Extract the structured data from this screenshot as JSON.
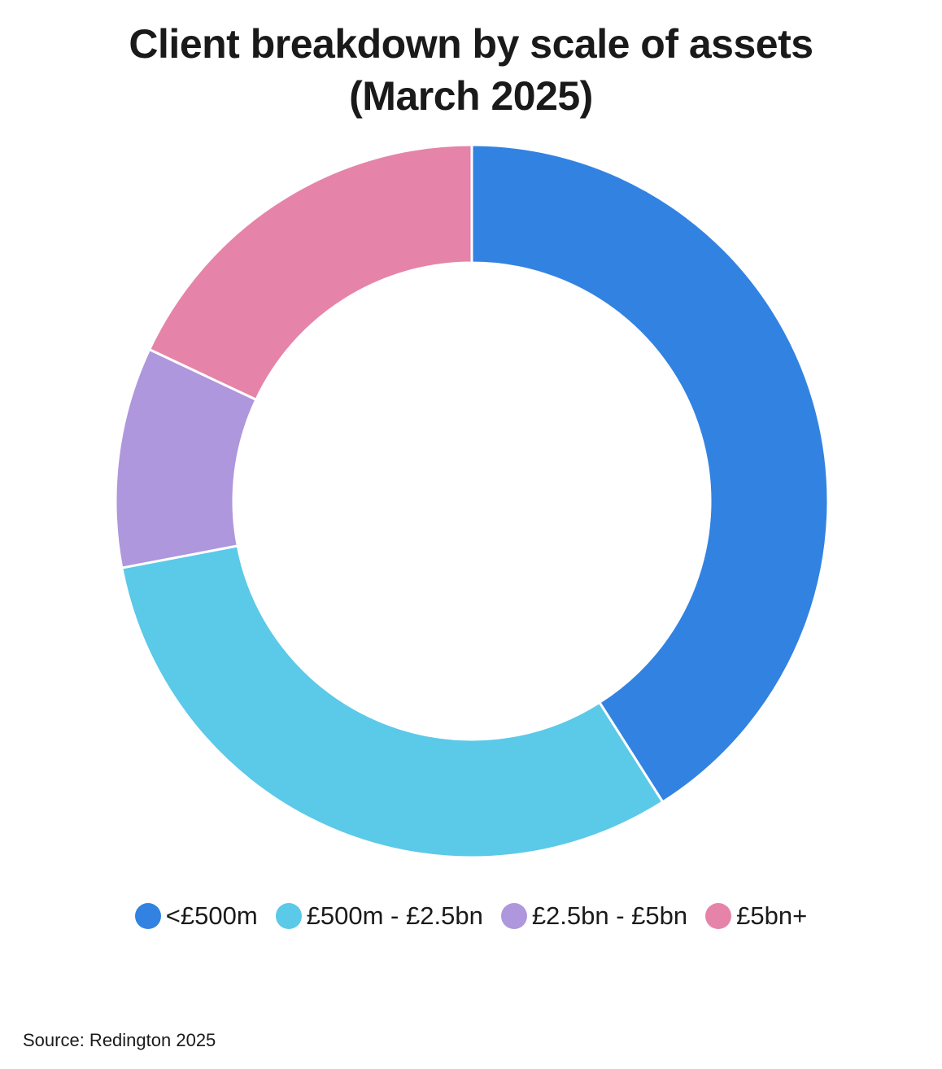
{
  "chart_data": {
    "type": "pie",
    "variant": "donut",
    "title_lines": [
      "Client breakdown by scale of assets",
      "(March 2025)"
    ],
    "categories": [
      "<£500m",
      "£500m - £2.5bn",
      "£2.5bn - £5bn",
      "£5bn+"
    ],
    "values": [
      41,
      31,
      10,
      18
    ],
    "unit": "%",
    "colors": [
      "#3282E2",
      "#5BC9E8",
      "#AE97DC",
      "#E683A9"
    ],
    "legend_position": "bottom",
    "source": "Source: Redington 2025"
  }
}
